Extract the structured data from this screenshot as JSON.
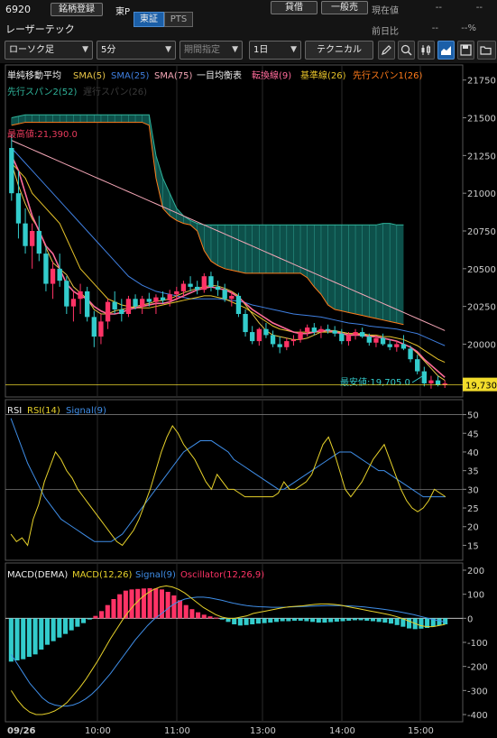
{
  "header": {
    "code": "6920",
    "stock_name": "レーザーテック",
    "meigara_button": "銘柄登録",
    "market": "東P",
    "seg_tosho": "東証",
    "seg_pts": "PTS",
    "kashaku_button": "貸借",
    "ippanbai_button": "一般売",
    "current_label": "現在値",
    "current_value": "--",
    "current_value2": "--",
    "prev_label": "前日比",
    "prev_value": "--",
    "prev_pct": "--%"
  },
  "toolbar": {
    "chart_type": "ローソク足",
    "interval": "5分",
    "period": "期間指定",
    "span": "1日",
    "technical": "テクニカル"
  },
  "colors": {
    "up": "#ff3366",
    "down": "#33cccc",
    "sma5": "#e8c547",
    "sma25": "#3f7fe0",
    "sma75": "#f4a6b6",
    "tenkan": "#ff6b9a",
    "kijun": "#e6c229",
    "span1": "#ff7a1a",
    "span2": "#2fb39a",
    "rsi": "#e6d12a",
    "rsi_signal": "#3f8ee8",
    "macd": "#e6d12a",
    "macd_signal": "#3f8ee8",
    "oscillator": "#ff3366"
  },
  "chart_data": [
    {
      "type": "candlestick",
      "legend": {
        "title": "単純移動平均",
        "sma5": "SMA(5)",
        "sma25": "SMA(25)",
        "sma75": "SMA(75)",
        "ichimoku": "一目均衡表",
        "tenkan": "転換線(9)",
        "kijun": "基準線(26)",
        "span1": "先行スパン1(26)",
        "span2": "先行スパン2(52)",
        "chikou": "遅行スパン(26)"
      },
      "ylim": [
        19650,
        21850
      ],
      "yticks": [
        "21750",
        "21500",
        "21250",
        "21000",
        "20750",
        "20500",
        "20250",
        "20000"
      ],
      "high_label": "最高値:21,390.0",
      "low_label": "最安値:19,705.0",
      "current_price": "19,730",
      "current_value": 19730,
      "xticks": [
        "09/26",
        "10:00",
        "11:00",
        "13:00",
        "14:00",
        "15:00"
      ],
      "candles": [
        [
          21300,
          21390,
          20950,
          21000
        ],
        [
          21000,
          21150,
          20700,
          20800
        ],
        [
          20800,
          20900,
          20600,
          20650
        ],
        [
          20650,
          20800,
          20500,
          20750
        ],
        [
          20750,
          20850,
          20550,
          20600
        ],
        [
          20600,
          20650,
          20350,
          20400
        ],
        [
          20400,
          20550,
          20300,
          20500
        ],
        [
          20500,
          20600,
          20380,
          20420
        ],
        [
          20420,
          20450,
          20200,
          20250
        ],
        [
          20250,
          20350,
          20150,
          20300
        ],
        [
          20300,
          20400,
          20200,
          20350
        ],
        [
          20350,
          20380,
          20150,
          20180
        ],
        [
          20180,
          20220,
          19980,
          20050
        ],
        [
          20050,
          20200,
          20000,
          20150
        ],
        [
          20150,
          20300,
          20100,
          20280
        ],
        [
          20280,
          20350,
          20200,
          20230
        ],
        [
          20230,
          20300,
          20150,
          20200
        ],
        [
          20200,
          20320,
          20180,
          20300
        ],
        [
          20300,
          20330,
          20230,
          20250
        ],
        [
          20250,
          20320,
          20200,
          20300
        ],
        [
          20300,
          20340,
          20250,
          20280
        ],
        [
          20280,
          20330,
          20200,
          20310
        ],
        [
          20310,
          20350,
          20270,
          20290
        ],
        [
          20290,
          20360,
          20250,
          20330
        ],
        [
          20330,
          20380,
          20290,
          20350
        ],
        [
          20350,
          20420,
          20310,
          20400
        ],
        [
          20400,
          20450,
          20350,
          20380
        ],
        [
          20380,
          20420,
          20330,
          20360
        ],
        [
          20360,
          20470,
          20340,
          20450
        ],
        [
          20450,
          20480,
          20350,
          20380
        ],
        [
          20380,
          20420,
          20320,
          20360
        ],
        [
          20360,
          20400,
          20280,
          20300
        ],
        [
          20300,
          20350,
          20250,
          20320
        ],
        [
          20320,
          20340,
          20180,
          20200
        ],
        [
          20200,
          20230,
          20050,
          20080
        ],
        [
          20080,
          20120,
          20000,
          20020
        ],
        [
          20020,
          20110,
          19990,
          20100
        ],
        [
          20100,
          20140,
          20040,
          20060
        ],
        [
          20060,
          20090,
          19980,
          20000
        ],
        [
          20000,
          20050,
          19940,
          19980
        ],
        [
          19980,
          20040,
          19960,
          20020
        ],
        [
          20020,
          20060,
          19990,
          20030
        ],
        [
          20030,
          20100,
          20010,
          20080
        ],
        [
          20080,
          20130,
          20050,
          20110
        ],
        [
          20110,
          20140,
          20060,
          20080
        ],
        [
          20080,
          20120,
          20040,
          20100
        ],
        [
          20100,
          20130,
          20070,
          20090
        ],
        [
          20090,
          20120,
          20050,
          20070
        ],
        [
          20070,
          20100,
          20000,
          20020
        ],
        [
          20020,
          20080,
          19990,
          20060
        ],
        [
          20060,
          20100,
          20030,
          20080
        ],
        [
          20080,
          20110,
          20040,
          20050
        ],
        [
          20050,
          20070,
          19990,
          20010
        ],
        [
          20010,
          20060,
          19980,
          20040
        ],
        [
          20040,
          20070,
          19990,
          20000
        ],
        [
          20000,
          20030,
          19960,
          19980
        ],
        [
          19980,
          20020,
          19950,
          20000
        ],
        [
          20000,
          20060,
          19960,
          19970
        ],
        [
          19970,
          19990,
          19880,
          19900
        ],
        [
          19900,
          19930,
          19800,
          19820
        ],
        [
          19820,
          19850,
          19720,
          19740
        ],
        [
          19740,
          19790,
          19705,
          19760
        ],
        [
          19760,
          19790,
          19720,
          19730
        ],
        [
          19730,
          19760,
          19710,
          19740
        ]
      ],
      "sma5": [
        21200,
        21050,
        20930,
        20830,
        20760,
        20640,
        20540,
        20500,
        20460,
        20380,
        20340,
        20300,
        20230,
        20200,
        20200,
        20220,
        20230,
        20240,
        20250,
        20260,
        20270,
        20285,
        20290,
        20300,
        20320,
        20340,
        20355,
        20370,
        20380,
        20390,
        20385,
        20370,
        20350,
        20320,
        20260,
        20200,
        20140,
        20090,
        20060,
        20050,
        20040,
        20030,
        20030,
        20040,
        20060,
        20080,
        20090,
        20090,
        20080,
        20070,
        20070,
        20065,
        20060,
        20050,
        20040,
        20030,
        20020,
        20000,
        19980,
        19940,
        19890,
        19840,
        19790,
        19760
      ],
      "sma25": [
        21300,
        21250,
        21200,
        21150,
        21100,
        21050,
        21000,
        20950,
        20900,
        20850,
        20800,
        20750,
        20700,
        20650,
        20600,
        20550,
        20500,
        20450,
        20420,
        20390,
        20370,
        20350,
        20340,
        20330,
        20320,
        20310,
        20300,
        20300,
        20300,
        20300,
        20300,
        20295,
        20290,
        20285,
        20275,
        20260,
        20250,
        20240,
        20230,
        20220,
        20210,
        20200,
        20195,
        20190,
        20185,
        20180,
        20170,
        20160,
        20150,
        20140,
        20135,
        20130,
        20120,
        20115,
        20110,
        20105,
        20100,
        20090,
        20080,
        20070,
        20050,
        20030,
        20010,
        19990
      ],
      "sma75": [
        21350,
        21330,
        21310,
        21290,
        21270,
        21250,
        21230,
        21210,
        21190,
        21170,
        21150,
        21130,
        21110,
        21090,
        21070,
        21050,
        21030,
        21010,
        20990,
        20970,
        20950,
        20930,
        20910,
        20890,
        20870,
        20850,
        20830,
        20810,
        20790,
        20770,
        20750,
        20730,
        20710,
        20690,
        20670,
        20650,
        20630,
        20610,
        20590,
        20570,
        20550,
        20530,
        20510,
        20490,
        20470,
        20450,
        20430,
        20410,
        20390,
        20370,
        20350,
        20330,
        20310,
        20290,
        20270,
        20250,
        20230,
        20210,
        20190,
        20170,
        20150,
        20130,
        20110,
        20090
      ],
      "tenkan": [
        21250,
        21150,
        21000,
        20850,
        20750,
        20650,
        20600,
        20500,
        20400,
        20350,
        20320,
        20300,
        20250,
        20220,
        20200,
        20200,
        20210,
        20230,
        20240,
        20250,
        20260,
        20270,
        20270,
        20280,
        20300,
        20320,
        20340,
        20360,
        20370,
        20380,
        20370,
        20360,
        20340,
        20310,
        20270,
        20230,
        20200,
        20170,
        20140,
        20120,
        20100,
        20080,
        20070,
        20070,
        20080,
        20090,
        20090,
        20080,
        20070,
        20060,
        20060,
        20060,
        20050,
        20050,
        20040,
        20030,
        20020,
        20000,
        19980,
        19950,
        19900,
        19860,
        19820,
        19780
      ],
      "kijun": [
        21200,
        21150,
        21100,
        21000,
        20950,
        20900,
        20850,
        20800,
        20700,
        20600,
        20500,
        20450,
        20400,
        20350,
        20300,
        20280,
        20260,
        20250,
        20240,
        20240,
        20240,
        20250,
        20260,
        20270,
        20280,
        20290,
        20300,
        20310,
        20320,
        20320,
        20310,
        20300,
        20280,
        20260,
        20240,
        20210,
        20180,
        20150,
        20120,
        20100,
        20090,
        20080,
        20080,
        20080,
        20080,
        20080,
        20080,
        20080,
        20080,
        20070,
        20070,
        20070,
        20060,
        20060,
        20050,
        20050,
        20040,
        20030,
        20010,
        19990,
        19960,
        19930,
        19900,
        19880
      ],
      "span1": [
        21450,
        21460,
        21470,
        21470,
        21470,
        21470,
        21470,
        21470,
        21470,
        21470,
        21470,
        21470,
        21470,
        21470,
        21470,
        21470,
        21470,
        21470,
        21470,
        21470,
        21450,
        21100,
        20900,
        20850,
        20820,
        20800,
        20790,
        20750,
        20620,
        20550,
        20520,
        20500,
        20490,
        20480,
        20470,
        20470,
        20470,
        20470,
        20470,
        20470,
        20470,
        20470,
        20470,
        20440,
        20380,
        20330,
        20260,
        20230,
        20220,
        20210,
        20200,
        20190,
        20180,
        20170,
        20160,
        20150,
        20140,
        20130
      ],
      "span2": [
        21500,
        21510,
        21520,
        21520,
        21520,
        21520,
        21520,
        21520,
        21520,
        21520,
        21520,
        21520,
        21520,
        21520,
        21520,
        21520,
        21520,
        21520,
        21520,
        21520,
        21520,
        21250,
        21100,
        21000,
        20900,
        20850,
        20820,
        20800,
        20790,
        20790,
        20790,
        20790,
        20790,
        20790,
        20790,
        20790,
        20790,
        20790,
        20790,
        20790,
        20790,
        20790,
        20790,
        20790,
        20790,
        20790,
        20790,
        20790,
        20790,
        20790,
        20790,
        20790,
        20790,
        20790,
        20800,
        20800,
        20790,
        20790
      ]
    },
    {
      "type": "line",
      "title": "RSI",
      "rsi_label": "RSI(14)",
      "signal_label": "Signal(9)",
      "ylim": [
        11,
        54
      ],
      "yticks": [
        50,
        45,
        40,
        35,
        30,
        25,
        20,
        15
      ],
      "rsi": [
        18,
        16,
        17,
        15,
        22,
        26,
        32,
        36,
        40,
        38,
        35,
        33,
        30,
        28,
        26,
        24,
        22,
        20,
        18,
        16,
        15,
        17,
        19,
        22,
        26,
        30,
        35,
        40,
        44,
        47,
        45,
        42,
        40,
        38,
        35,
        32,
        30,
        34,
        32,
        30,
        30,
        29,
        28,
        28,
        28,
        28,
        28,
        28,
        29,
        32,
        30,
        30,
        31,
        32,
        34,
        38,
        42,
        44,
        40,
        35,
        30,
        28,
        30,
        32,
        35,
        38,
        40,
        42,
        38,
        34,
        30,
        27,
        25,
        24,
        25,
        27,
        30,
        29,
        28
      ],
      "signal": [
        49,
        45,
        41,
        37,
        34,
        31,
        28,
        26,
        24,
        22,
        21,
        20,
        19,
        18,
        17,
        16,
        16,
        16,
        16,
        17,
        18,
        20,
        22,
        24,
        26,
        28,
        30,
        32,
        34,
        36,
        38,
        40,
        41,
        42,
        43,
        43,
        43,
        42,
        41,
        40,
        38,
        37,
        36,
        35,
        34,
        33,
        32,
        31,
        30,
        30,
        31,
        32,
        33,
        34,
        35,
        36,
        37,
        38,
        39,
        40,
        40,
        40,
        39,
        38,
        37,
        36,
        35,
        35,
        34,
        33,
        32,
        31,
        30,
        29,
        28,
        28,
        28,
        28,
        28
      ]
    },
    {
      "type": "bar",
      "title": "MACD(DEMA)",
      "macd_label": "MACD(12,26)",
      "signal_label": "Signal(9)",
      "oscillator_label": "Oscillator(12,26,9)",
      "ylim": [
        -430,
        230
      ],
      "yticks": [
        200,
        100,
        0,
        -100,
        -200,
        -300,
        -400
      ],
      "oscillator": [
        -180,
        -175,
        -170,
        -160,
        -150,
        -130,
        -110,
        -95,
        -80,
        -65,
        -50,
        -35,
        -20,
        -5,
        10,
        30,
        55,
        80,
        100,
        115,
        120,
        122,
        124,
        125,
        124,
        120,
        110,
        95,
        75,
        55,
        38,
        25,
        15,
        8,
        3,
        -5,
        -15,
        -25,
        -30,
        -28,
        -25,
        -22,
        -20,
        -18,
        -15,
        -12,
        -12,
        -10,
        -10,
        -12,
        -15,
        -18,
        -18,
        -16,
        -14,
        -12,
        -10,
        -8,
        -8,
        -10,
        -12,
        -15,
        -18,
        -22,
        -28,
        -35,
        -42,
        -45,
        -43,
        -40,
        -35,
        -30,
        -25
      ],
      "macd": [
        -300,
        -340,
        -370,
        -390,
        -400,
        -400,
        -395,
        -385,
        -370,
        -350,
        -320,
        -290,
        -255,
        -215,
        -175,
        -130,
        -85,
        -45,
        -5,
        30,
        60,
        85,
        105,
        120,
        130,
        135,
        130,
        120,
        105,
        85,
        65,
        45,
        30,
        15,
        5,
        0,
        0,
        5,
        10,
        20,
        25,
        30,
        35,
        40,
        45,
        48,
        50,
        52,
        55,
        58,
        60,
        60,
        58,
        55,
        50,
        45,
        40,
        35,
        30,
        25,
        20,
        15,
        8,
        0,
        -10,
        -20,
        -30,
        -35,
        -35,
        -30,
        -25
      ],
      "signal": [
        -150,
        -190,
        -230,
        -270,
        -300,
        -330,
        -350,
        -360,
        -365,
        -365,
        -360,
        -350,
        -335,
        -315,
        -290,
        -260,
        -230,
        -195,
        -160,
        -125,
        -90,
        -60,
        -30,
        -5,
        15,
        35,
        55,
        70,
        80,
        85,
        88,
        88,
        85,
        80,
        75,
        68,
        62,
        57,
        53,
        50,
        48,
        47,
        46,
        46,
        46,
        47,
        48,
        49,
        50,
        51,
        52,
        53,
        53,
        53,
        52,
        51,
        49,
        47,
        44,
        41,
        38,
        34,
        30,
        25,
        20,
        15,
        8,
        2,
        -5,
        -10,
        -15
      ]
    }
  ]
}
